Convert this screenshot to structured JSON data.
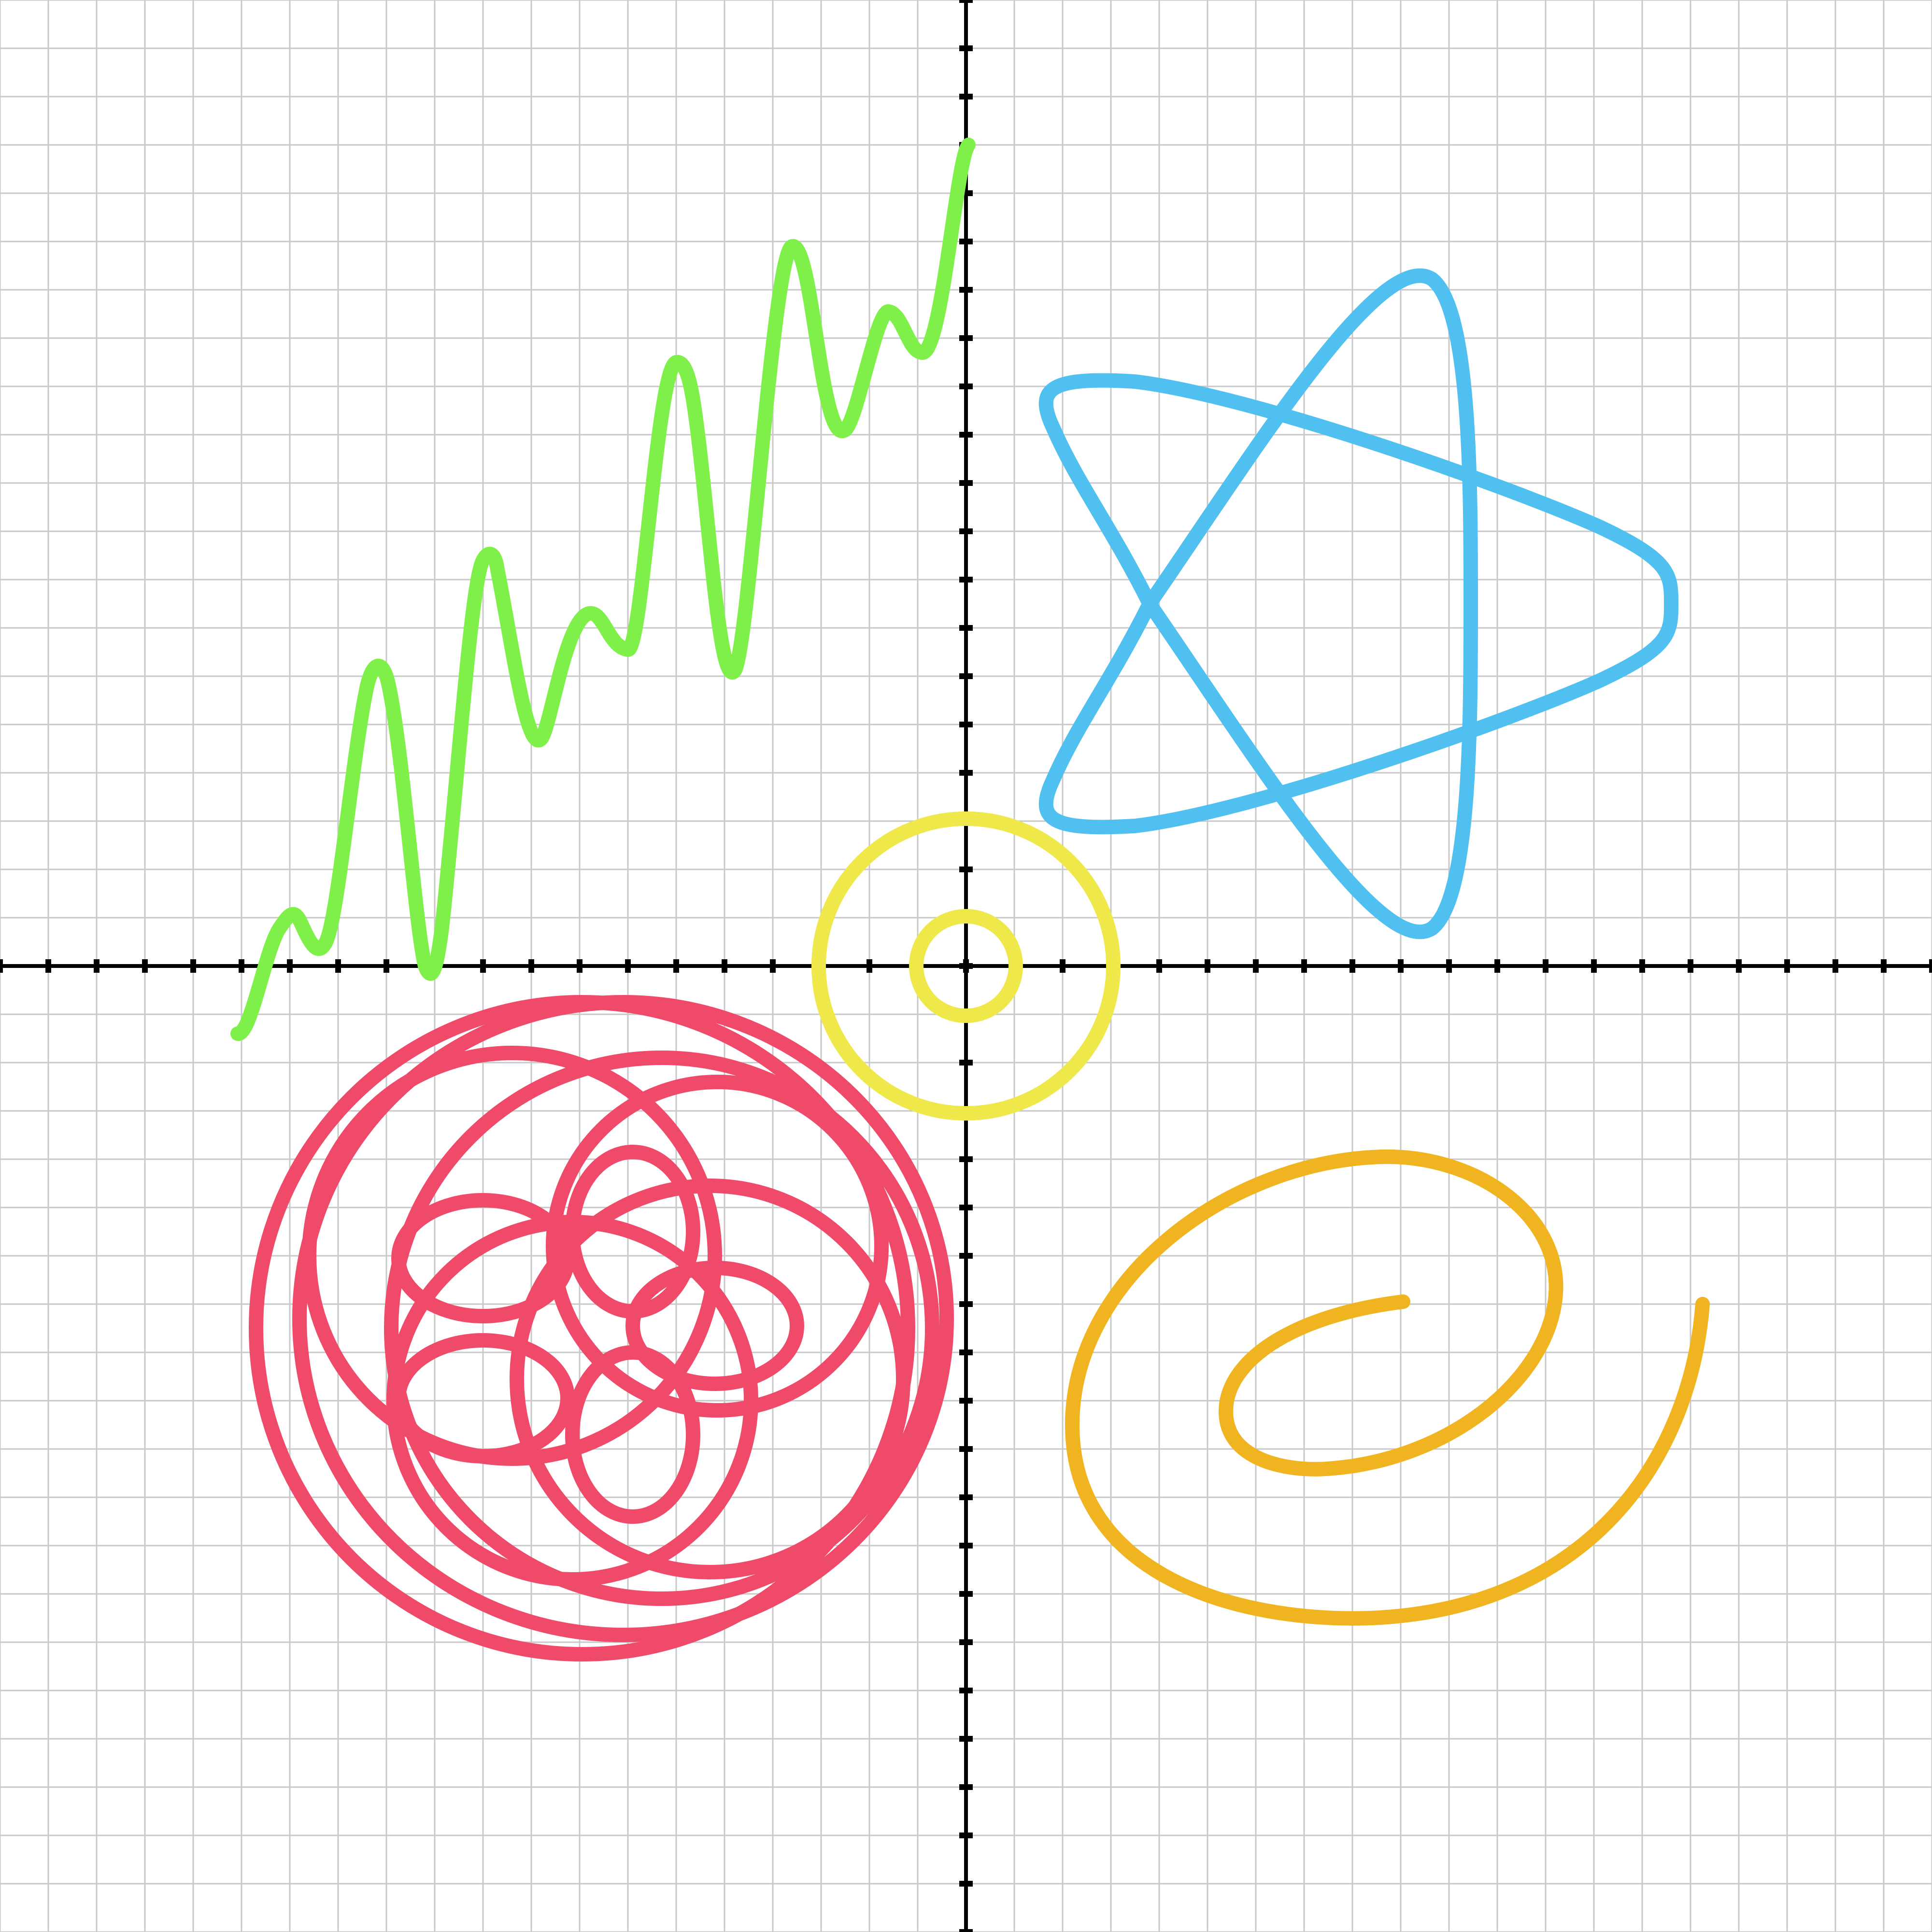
{
  "canvas": {
    "background": "#ffffff",
    "grid_color": "#c8c8c8",
    "axis_color": "#000000"
  },
  "grid": {
    "major_step": 1,
    "x_range": [
      -20,
      20
    ],
    "y_range": [
      -20,
      20
    ],
    "show_ticks": true,
    "show_tick_labels": false
  },
  "curves": [
    {
      "id": "green-wave",
      "shape": "noisy wave",
      "color": "#7ff04a"
    },
    {
      "id": "blue-star",
      "shape": "five-point star loop",
      "color": "#4fc0ef"
    },
    {
      "id": "yellow-rings",
      "shape": "two concentric circles",
      "color": "#efe84a"
    },
    {
      "id": "red-rose",
      "shape": "overlapping loop rosette",
      "color": "#ef4a6a"
    },
    {
      "id": "orange-spiral",
      "shape": "spiral",
      "color": "#f0b420"
    }
  ]
}
